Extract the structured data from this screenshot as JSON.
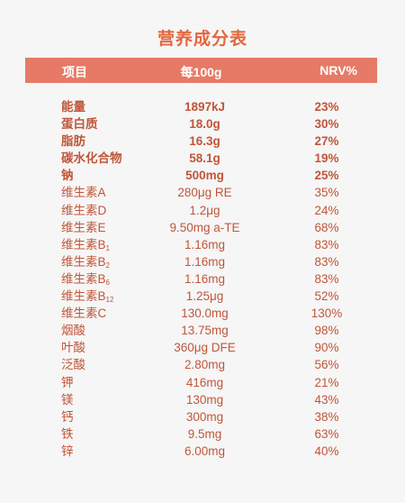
{
  "title": "营养成分表",
  "header": {
    "item": "项目",
    "per100g": "每100g",
    "nrv": "NRV%"
  },
  "rows": [
    {
      "name": "能量",
      "value": "1897kJ",
      "nrv": "23%",
      "bold": true
    },
    {
      "name": "蛋白质",
      "value": "18.0g",
      "nrv": "30%",
      "bold": true
    },
    {
      "name": "脂肪",
      "value": "16.3g",
      "nrv": "27%",
      "bold": true
    },
    {
      "name": "碳水化合物",
      "value": "58.1g",
      "nrv": "19%",
      "bold": true
    },
    {
      "name": "钠",
      "value": "500mg",
      "nrv": "25%",
      "bold": true
    },
    {
      "name": "维生素A",
      "value": "280μg RE",
      "nrv": "35%"
    },
    {
      "name": "维生素D",
      "value": "1.2μg",
      "nrv": "24%"
    },
    {
      "name": "维生素E",
      "value": "9.50mg a-TE",
      "nrv": "68%"
    },
    {
      "name": "维生素B",
      "sub": "1",
      "value": "1.16mg",
      "nrv": "83%"
    },
    {
      "name": "维生素B",
      "sub": "2",
      "value": "1.16mg",
      "nrv": "83%"
    },
    {
      "name": "维生素B",
      "sub": "6",
      "value": "1.16mg",
      "nrv": "83%"
    },
    {
      "name": "维生素B",
      "sub": "12",
      "value": "1.25μg",
      "nrv": "52%"
    },
    {
      "name": "维生素C",
      "value": "130.0mg",
      "nrv": "130%"
    },
    {
      "name": "烟酸",
      "value": "13.75mg",
      "nrv": "98%"
    },
    {
      "name": "叶酸",
      "value": "360μg DFE",
      "nrv": "90%"
    },
    {
      "name": "泛酸",
      "value": "2.80mg",
      "nrv": "56%"
    },
    {
      "name": "钾",
      "value": "416mg",
      "nrv": "21%"
    },
    {
      "name": "镁",
      "value": "130mg",
      "nrv": "43%"
    },
    {
      "name": "钙",
      "value": "300mg",
      "nrv": "38%"
    },
    {
      "name": "铁",
      "value": "9.5mg",
      "nrv": "63%"
    },
    {
      "name": "锌",
      "value": "6.00mg",
      "nrv": "40%"
    }
  ]
}
